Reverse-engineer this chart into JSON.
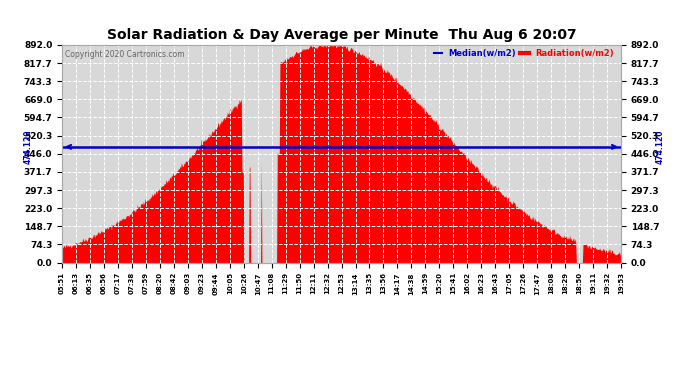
{
  "title": "Solar Radiation & Day Average per Minute  Thu Aug 6 20:07",
  "copyright": "Copyright 2020 Cartronics.com",
  "legend_median": "Median(w/m2)",
  "legend_radiation": "Radiation(w/m2)",
  "median_value": 474.12,
  "median_label": "474.120",
  "ymin": 0.0,
  "ymax": 892.0,
  "yticks": [
    0.0,
    74.3,
    148.7,
    223.0,
    297.3,
    371.7,
    446.0,
    520.3,
    594.7,
    669.0,
    743.3,
    817.7,
    892.0
  ],
  "background_color": "#ffffff",
  "plot_bg_color": "#d8d8d8",
  "radiation_color": "#ff0000",
  "median_color": "#0000cc",
  "grid_color": "#ffffff",
  "title_color": "#000000",
  "copyright_color": "#666666",
  "xtick_labels": [
    "05:51",
    "06:13",
    "06:35",
    "06:56",
    "07:17",
    "07:38",
    "07:59",
    "08:20",
    "08:42",
    "09:03",
    "09:23",
    "09:44",
    "10:05",
    "10:26",
    "10:47",
    "11:08",
    "11:29",
    "11:50",
    "12:11",
    "12:32",
    "12:53",
    "13:14",
    "13:35",
    "13:56",
    "14:17",
    "14:38",
    "14:59",
    "15:20",
    "15:41",
    "16:02",
    "16:23",
    "16:43",
    "17:05",
    "17:26",
    "17:47",
    "18:08",
    "18:29",
    "18:50",
    "19:11",
    "19:32",
    "19:53"
  ],
  "num_points": 840
}
